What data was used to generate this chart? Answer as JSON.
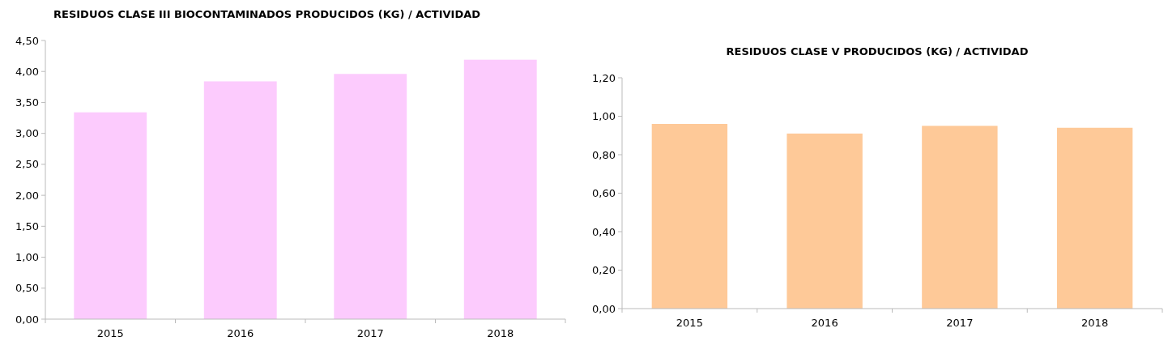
{
  "chart_data": [
    {
      "type": "bar",
      "title": "RESIDUOS CLASE III BIOCONTAMINADOS PRODUCIDOS (KG) / ACTIVIDAD",
      "categories": [
        "2015",
        "2016",
        "2017",
        "2018"
      ],
      "values": [
        3.34,
        3.84,
        3.96,
        4.19
      ],
      "color": "#fccbfd",
      "ylim": [
        0,
        4.5
      ],
      "yticks": [
        {
          "value": 0,
          "label": "0,00"
        },
        {
          "value": 0.5,
          "label": "0,50"
        },
        {
          "value": 1,
          "label": "1,00"
        },
        {
          "value": 1.5,
          "label": "1,50"
        },
        {
          "value": 2,
          "label": "2,00"
        },
        {
          "value": 2.5,
          "label": "2,50"
        },
        {
          "value": 3,
          "label": "3,00"
        },
        {
          "value": 3.5,
          "label": "3,50"
        },
        {
          "value": 4,
          "label": "4,00"
        },
        {
          "value": 4.5,
          "label": "4,50"
        }
      ],
      "grid": false
    },
    {
      "type": "bar",
      "title": "RESIDUOS CLASE V PRODUCIDOS (KG) / ACTIVIDAD",
      "categories": [
        "2015",
        "2016",
        "2017",
        "2018"
      ],
      "values": [
        0.96,
        0.91,
        0.95,
        0.94
      ],
      "color": "#fec998",
      "ylim": [
        0,
        1.2
      ],
      "yticks": [
        {
          "value": 0,
          "label": "0,00"
        },
        {
          "value": 0.2,
          "label": "0,20"
        },
        {
          "value": 0.4,
          "label": "0,40"
        },
        {
          "value": 0.6,
          "label": "0,60"
        },
        {
          "value": 0.8,
          "label": "0,80"
        },
        {
          "value": 1,
          "label": "1,00"
        },
        {
          "value": 1.2,
          "label": "1,20"
        }
      ],
      "grid": false
    }
  ]
}
